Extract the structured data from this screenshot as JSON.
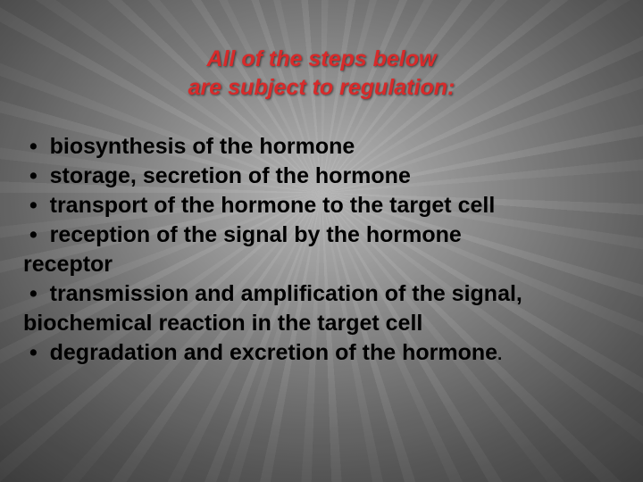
{
  "title": {
    "line1": "All of the steps below",
    "line2": "are subject to regulation:",
    "color": "#d82a2a",
    "fontsize_pt": 25,
    "font_weight": "bold",
    "font_style": "italic"
  },
  "content": {
    "text_color": "#000000",
    "fontsize_pt": 25,
    "font_weight": "bold",
    "bullet_glyph": "•",
    "lines": [
      "biosynthesis of the hormone",
      "storage, secretion of the hormone",
      "transport of the hormone to the target cell",
      "reception of the signal by the hormone",
      "receptor",
      "transmission and amplification of the signal,",
      "biochemical reaction in the target cell",
      "degradation and excretion of the hormone"
    ],
    "bulleted_line_indices": [
      0,
      1,
      2,
      3,
      5,
      7
    ],
    "trailing_period_line_index": 7
  },
  "background": {
    "type": "radial-rays",
    "center_color": "#b8b8b8",
    "edge_color": "#0a0a0a"
  }
}
